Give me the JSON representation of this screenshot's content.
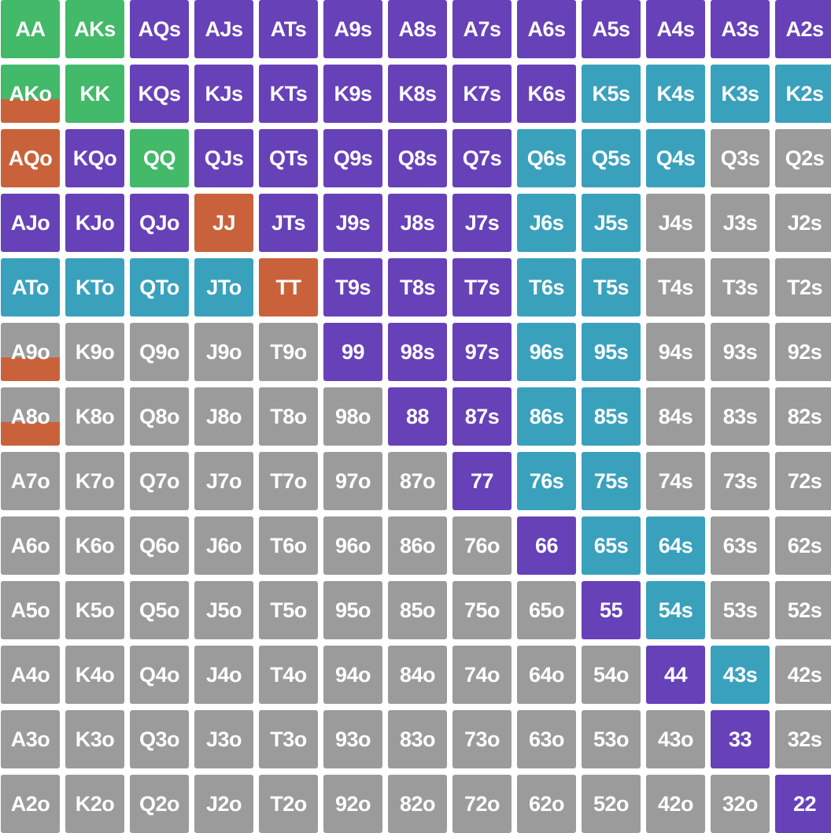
{
  "colors": {
    "green": "#43b96a",
    "purple": "#6741b8",
    "teal": "#3aa1bd",
    "orange": "#c9623a",
    "gray": "#9b9b9b"
  },
  "rows": [
    [
      {
        "label": "AA",
        "color": "green"
      },
      {
        "label": "AKs",
        "color": "green"
      },
      {
        "label": "AQs",
        "color": "purple"
      },
      {
        "label": "AJs",
        "color": "purple"
      },
      {
        "label": "ATs",
        "color": "purple"
      },
      {
        "label": "A9s",
        "color": "purple"
      },
      {
        "label": "A8s",
        "color": "purple"
      },
      {
        "label": "A7s",
        "color": "purple"
      },
      {
        "label": "A6s",
        "color": "purple"
      },
      {
        "label": "A5s",
        "color": "purple"
      },
      {
        "label": "A4s",
        "color": "purple"
      },
      {
        "label": "A3s",
        "color": "purple"
      },
      {
        "label": "A2s",
        "color": "purple"
      }
    ],
    [
      {
        "label": "AKo",
        "color": "green",
        "secondary": "orange",
        "secondary_fraction": 0.4
      },
      {
        "label": "KK",
        "color": "green"
      },
      {
        "label": "KQs",
        "color": "purple"
      },
      {
        "label": "KJs",
        "color": "purple"
      },
      {
        "label": "KTs",
        "color": "purple"
      },
      {
        "label": "K9s",
        "color": "purple"
      },
      {
        "label": "K8s",
        "color": "purple"
      },
      {
        "label": "K7s",
        "color": "purple"
      },
      {
        "label": "K6s",
        "color": "purple"
      },
      {
        "label": "K5s",
        "color": "teal"
      },
      {
        "label": "K4s",
        "color": "teal"
      },
      {
        "label": "K3s",
        "color": "teal"
      },
      {
        "label": "K2s",
        "color": "teal"
      }
    ],
    [
      {
        "label": "AQo",
        "color": "orange"
      },
      {
        "label": "KQo",
        "color": "purple"
      },
      {
        "label": "QQ",
        "color": "green"
      },
      {
        "label": "QJs",
        "color": "purple"
      },
      {
        "label": "QTs",
        "color": "purple"
      },
      {
        "label": "Q9s",
        "color": "purple"
      },
      {
        "label": "Q8s",
        "color": "purple"
      },
      {
        "label": "Q7s",
        "color": "purple"
      },
      {
        "label": "Q6s",
        "color": "teal"
      },
      {
        "label": "Q5s",
        "color": "teal"
      },
      {
        "label": "Q4s",
        "color": "teal"
      },
      {
        "label": "Q3s",
        "color": "gray"
      },
      {
        "label": "Q2s",
        "color": "gray"
      }
    ],
    [
      {
        "label": "AJo",
        "color": "purple"
      },
      {
        "label": "KJo",
        "color": "purple"
      },
      {
        "label": "QJo",
        "color": "purple"
      },
      {
        "label": "JJ",
        "color": "orange"
      },
      {
        "label": "JTs",
        "color": "purple"
      },
      {
        "label": "J9s",
        "color": "purple"
      },
      {
        "label": "J8s",
        "color": "purple"
      },
      {
        "label": "J7s",
        "color": "purple"
      },
      {
        "label": "J6s",
        "color": "teal"
      },
      {
        "label": "J5s",
        "color": "teal"
      },
      {
        "label": "J4s",
        "color": "gray"
      },
      {
        "label": "J3s",
        "color": "gray"
      },
      {
        "label": "J2s",
        "color": "gray"
      }
    ],
    [
      {
        "label": "ATo",
        "color": "teal"
      },
      {
        "label": "KTo",
        "color": "teal"
      },
      {
        "label": "QTo",
        "color": "teal"
      },
      {
        "label": "JTo",
        "color": "teal"
      },
      {
        "label": "TT",
        "color": "orange"
      },
      {
        "label": "T9s",
        "color": "purple"
      },
      {
        "label": "T8s",
        "color": "purple"
      },
      {
        "label": "T7s",
        "color": "purple"
      },
      {
        "label": "T6s",
        "color": "teal"
      },
      {
        "label": "T5s",
        "color": "teal"
      },
      {
        "label": "T4s",
        "color": "gray"
      },
      {
        "label": "T3s",
        "color": "gray"
      },
      {
        "label": "T2s",
        "color": "gray"
      }
    ],
    [
      {
        "label": "A9o",
        "color": "gray",
        "secondary": "orange",
        "secondary_fraction": 0.4
      },
      {
        "label": "K9o",
        "color": "gray"
      },
      {
        "label": "Q9o",
        "color": "gray"
      },
      {
        "label": "J9o",
        "color": "gray"
      },
      {
        "label": "T9o",
        "color": "gray"
      },
      {
        "label": "99",
        "color": "purple"
      },
      {
        "label": "98s",
        "color": "purple"
      },
      {
        "label": "97s",
        "color": "purple"
      },
      {
        "label": "96s",
        "color": "teal"
      },
      {
        "label": "95s",
        "color": "teal"
      },
      {
        "label": "94s",
        "color": "gray"
      },
      {
        "label": "93s",
        "color": "gray"
      },
      {
        "label": "92s",
        "color": "gray"
      }
    ],
    [
      {
        "label": "A8o",
        "color": "gray",
        "secondary": "orange",
        "secondary_fraction": 0.4
      },
      {
        "label": "K8o",
        "color": "gray"
      },
      {
        "label": "Q8o",
        "color": "gray"
      },
      {
        "label": "J8o",
        "color": "gray"
      },
      {
        "label": "T8o",
        "color": "gray"
      },
      {
        "label": "98o",
        "color": "gray"
      },
      {
        "label": "88",
        "color": "purple"
      },
      {
        "label": "87s",
        "color": "purple"
      },
      {
        "label": "86s",
        "color": "teal"
      },
      {
        "label": "85s",
        "color": "teal"
      },
      {
        "label": "84s",
        "color": "gray"
      },
      {
        "label": "83s",
        "color": "gray"
      },
      {
        "label": "82s",
        "color": "gray"
      }
    ],
    [
      {
        "label": "A7o",
        "color": "gray"
      },
      {
        "label": "K7o",
        "color": "gray"
      },
      {
        "label": "Q7o",
        "color": "gray"
      },
      {
        "label": "J7o",
        "color": "gray"
      },
      {
        "label": "T7o",
        "color": "gray"
      },
      {
        "label": "97o",
        "color": "gray"
      },
      {
        "label": "87o",
        "color": "gray"
      },
      {
        "label": "77",
        "color": "purple"
      },
      {
        "label": "76s",
        "color": "teal"
      },
      {
        "label": "75s",
        "color": "teal"
      },
      {
        "label": "74s",
        "color": "gray"
      },
      {
        "label": "73s",
        "color": "gray"
      },
      {
        "label": "72s",
        "color": "gray"
      }
    ],
    [
      {
        "label": "A6o",
        "color": "gray"
      },
      {
        "label": "K6o",
        "color": "gray"
      },
      {
        "label": "Q6o",
        "color": "gray"
      },
      {
        "label": "J6o",
        "color": "gray"
      },
      {
        "label": "T6o",
        "color": "gray"
      },
      {
        "label": "96o",
        "color": "gray"
      },
      {
        "label": "86o",
        "color": "gray"
      },
      {
        "label": "76o",
        "color": "gray"
      },
      {
        "label": "66",
        "color": "purple"
      },
      {
        "label": "65s",
        "color": "teal"
      },
      {
        "label": "64s",
        "color": "teal"
      },
      {
        "label": "63s",
        "color": "gray"
      },
      {
        "label": "62s",
        "color": "gray"
      }
    ],
    [
      {
        "label": "A5o",
        "color": "gray"
      },
      {
        "label": "K5o",
        "color": "gray"
      },
      {
        "label": "Q5o",
        "color": "gray"
      },
      {
        "label": "J5o",
        "color": "gray"
      },
      {
        "label": "T5o",
        "color": "gray"
      },
      {
        "label": "95o",
        "color": "gray"
      },
      {
        "label": "85o",
        "color": "gray"
      },
      {
        "label": "75o",
        "color": "gray"
      },
      {
        "label": "65o",
        "color": "gray"
      },
      {
        "label": "55",
        "color": "purple"
      },
      {
        "label": "54s",
        "color": "teal"
      },
      {
        "label": "53s",
        "color": "gray"
      },
      {
        "label": "52s",
        "color": "gray"
      }
    ],
    [
      {
        "label": "A4o",
        "color": "gray"
      },
      {
        "label": "K4o",
        "color": "gray"
      },
      {
        "label": "Q4o",
        "color": "gray"
      },
      {
        "label": "J4o",
        "color": "gray"
      },
      {
        "label": "T4o",
        "color": "gray"
      },
      {
        "label": "94o",
        "color": "gray"
      },
      {
        "label": "84o",
        "color": "gray"
      },
      {
        "label": "74o",
        "color": "gray"
      },
      {
        "label": "64o",
        "color": "gray"
      },
      {
        "label": "54o",
        "color": "gray"
      },
      {
        "label": "44",
        "color": "purple"
      },
      {
        "label": "43s",
        "color": "teal"
      },
      {
        "label": "42s",
        "color": "gray"
      }
    ],
    [
      {
        "label": "A3o",
        "color": "gray"
      },
      {
        "label": "K3o",
        "color": "gray"
      },
      {
        "label": "Q3o",
        "color": "gray"
      },
      {
        "label": "J3o",
        "color": "gray"
      },
      {
        "label": "T3o",
        "color": "gray"
      },
      {
        "label": "93o",
        "color": "gray"
      },
      {
        "label": "83o",
        "color": "gray"
      },
      {
        "label": "73o",
        "color": "gray"
      },
      {
        "label": "63o",
        "color": "gray"
      },
      {
        "label": "53o",
        "color": "gray"
      },
      {
        "label": "43o",
        "color": "gray"
      },
      {
        "label": "33",
        "color": "purple"
      },
      {
        "label": "32s",
        "color": "gray"
      }
    ],
    [
      {
        "label": "A2o",
        "color": "gray"
      },
      {
        "label": "K2o",
        "color": "gray"
      },
      {
        "label": "Q2o",
        "color": "gray"
      },
      {
        "label": "J2o",
        "color": "gray"
      },
      {
        "label": "T2o",
        "color": "gray"
      },
      {
        "label": "92o",
        "color": "gray"
      },
      {
        "label": "82o",
        "color": "gray"
      },
      {
        "label": "72o",
        "color": "gray"
      },
      {
        "label": "62o",
        "color": "gray"
      },
      {
        "label": "52o",
        "color": "gray"
      },
      {
        "label": "42o",
        "color": "gray"
      },
      {
        "label": "32o",
        "color": "gray"
      },
      {
        "label": "22",
        "color": "purple"
      }
    ]
  ]
}
